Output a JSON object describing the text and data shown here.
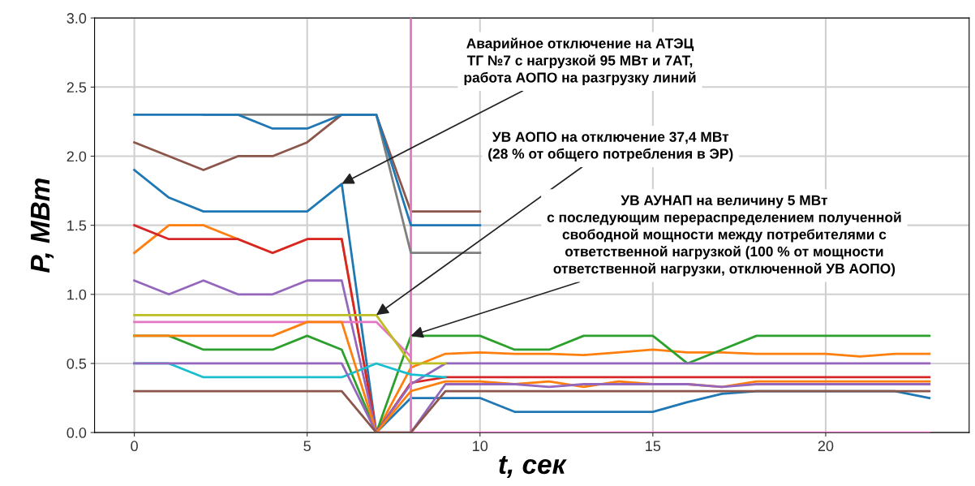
{
  "chart_data": {
    "type": "line",
    "xlabel": "t, сек",
    "ylabel": "P, МВт",
    "x": [
      0,
      1,
      2,
      3,
      4,
      5,
      6,
      7,
      8,
      9,
      10,
      11,
      12,
      13,
      14,
      15,
      16,
      17,
      18,
      19,
      20,
      21,
      22,
      23
    ],
    "xlim": [
      -1.15,
      24.15
    ],
    "ylim": [
      0,
      3.0
    ],
    "xticks": [
      0,
      5,
      10,
      15,
      20
    ],
    "yticks": [
      {
        "value": 0,
        "label": "0.0"
      },
      {
        "value": 0.5,
        "label": "0.5"
      },
      {
        "value": 1,
        "label": "1.0"
      },
      {
        "value": 1.5,
        "label": "1.5"
      },
      {
        "value": 2,
        "label": "2.0"
      },
      {
        "value": 2.5,
        "label": "2.5"
      },
      {
        "value": 3,
        "label": "3.0"
      }
    ],
    "grid": true,
    "legend": false,
    "marker": "none",
    "line_style": "solid",
    "series": [
      {
        "color": "#1f77b4",
        "values": [
          1.9,
          1.7,
          1.6,
          1.6,
          1.6,
          1.6,
          1.8,
          0,
          0.25,
          0.25,
          0.25,
          0.15,
          0.15,
          0.15,
          0.15,
          0.15,
          0.22,
          0.28,
          0.3,
          0.3,
          0.3,
          0.3,
          0.3,
          0.25
        ]
      },
      {
        "color": "#ff7f0e",
        "values": [
          1.3,
          1.5,
          1.5,
          1.4,
          1.3,
          1.4,
          1.4,
          0,
          0.47,
          0.57,
          0.58,
          0.57,
          0.57,
          0.56,
          0.58,
          0.6,
          0.58,
          0.58,
          0.57,
          0.57,
          0.57,
          0.55,
          0.57,
          0.57
        ]
      },
      {
        "color": "#2ca02c",
        "values": [
          0.7,
          0.7,
          0.6,
          0.6,
          0.6,
          0.7,
          0.6,
          0,
          0.7,
          0.7,
          0.7,
          0.6,
          0.6,
          0.7,
          0.7,
          0.7,
          0.5,
          0.6,
          0.7,
          0.7,
          0.7,
          0.7,
          0.7,
          0.7
        ]
      },
      {
        "color": "#d62728",
        "values": [
          1.5,
          1.4,
          1.4,
          1.4,
          1.3,
          1.4,
          1.4,
          0,
          0.36,
          0.4,
          0.4,
          0.4,
          0.4,
          0.4,
          0.4,
          0.4,
          0.4,
          0.4,
          0.4,
          0.4,
          0.4,
          0.4,
          0.4,
          0.4
        ]
      },
      {
        "color": "#9467bd",
        "values": [
          1.1,
          1.0,
          1.1,
          1.0,
          1.0,
          1.1,
          1.1,
          0,
          0.35,
          0.5,
          0.5,
          0.5,
          0.5,
          0.5,
          0.5,
          0.5,
          0.5,
          0.5,
          0.5,
          0.5,
          0.5,
          0.5,
          0.5,
          0.5
        ]
      },
      {
        "color": "#8c564b",
        "values": [
          2.1,
          2.0,
          1.9,
          2.0,
          2.0,
          2.1,
          2.3,
          2.3,
          1.6,
          1.6,
          1.6,
          null,
          null,
          null,
          null,
          null,
          null,
          null,
          null,
          null,
          null,
          null,
          null,
          null
        ]
      },
      {
        "color": "#e377c2",
        "x": [
          0,
          1,
          2,
          3,
          4,
          5,
          6,
          7,
          8,
          8,
          8,
          9,
          10,
          11,
          12,
          13,
          14,
          15,
          16,
          17,
          18,
          19,
          20,
          21,
          22,
          23
        ],
        "values": [
          0.8,
          0.8,
          0.8,
          0.8,
          0.8,
          0.8,
          0.8,
          0.8,
          0.55,
          3.0,
          0,
          0,
          0,
          0,
          0,
          0,
          0,
          0,
          0,
          0,
          0,
          0,
          0,
          0,
          0,
          0
        ]
      },
      {
        "color": "#7f7f7f",
        "values": [
          null,
          null,
          2.3,
          2.3,
          2.3,
          2.3,
          2.3,
          2.3,
          1.3,
          1.3,
          1.3,
          null,
          null,
          null,
          null,
          null,
          null,
          null,
          null,
          null,
          null,
          null,
          null,
          null
        ]
      },
      {
        "color": "#bcbd22",
        "values": [
          0.85,
          0.85,
          0.85,
          0.85,
          0.85,
          0.85,
          0.85,
          0.85,
          0.5,
          0.5,
          null,
          null,
          null,
          null,
          null,
          null,
          null,
          null,
          null,
          null,
          null,
          null,
          null,
          null
        ]
      },
      {
        "color": "#17becf",
        "values": [
          0.5,
          0.5,
          0.4,
          0.4,
          0.4,
          0.4,
          0.4,
          0.5,
          0.42,
          0.4,
          null,
          null,
          null,
          null,
          null,
          null,
          null,
          null,
          null,
          null,
          null,
          null,
          null,
          null
        ]
      },
      {
        "color": "#1f77b4",
        "values": [
          2.3,
          2.3,
          2.3,
          2.3,
          2.2,
          2.2,
          2.3,
          2.3,
          1.5,
          1.5,
          1.5,
          null,
          null,
          null,
          null,
          null,
          null,
          null,
          null,
          null,
          null,
          null,
          null,
          null
        ]
      },
      {
        "color": "#ff7f0e",
        "values": [
          0.7,
          0.7,
          0.7,
          0.7,
          0.7,
          0.8,
          0.8,
          0,
          0.3,
          0.37,
          0.37,
          0.35,
          0.37,
          0.33,
          0.37,
          0.35,
          0.35,
          0.33,
          0.37,
          0.37,
          0.37,
          0.37,
          0.37,
          0.37
        ]
      },
      {
        "color": "#9467bd",
        "values": [
          0.5,
          0.5,
          0.5,
          0.5,
          0.5,
          0.5,
          0.5,
          0,
          0,
          0.35,
          0.35,
          0.35,
          0.33,
          0.35,
          0.35,
          0.35,
          0.35,
          0.33,
          0.35,
          0.35,
          0.35,
          0.35,
          0.35,
          0.35
        ]
      },
      {
        "color": "#8c564b",
        "values": [
          0.3,
          0.3,
          0.3,
          0.3,
          0.3,
          0.3,
          0.3,
          0,
          0,
          0.3,
          0.3,
          0.3,
          0.3,
          0.3,
          0.3,
          0.3,
          0.3,
          0.3,
          0.3,
          0.3,
          0.3,
          0.3,
          0.3,
          0.3
        ]
      }
    ],
    "annotations": [
      {
        "text": "Аварийное отключение на АТЭЦ\nТГ №7 с нагрузкой 95 МВт и 7АТ,\nработа АОПО на разгрузку линий",
        "x": 6,
        "y": 1.8
      },
      {
        "text": "УВ АОПО на отключение 37,4 МВт\n(28 % от общего потребления в ЭР)",
        "x": 7,
        "y": 0.85
      },
      {
        "text": "УВ АУНАП на величину 5 МВт\nс последующим перераспределением полученной\nсвободной мощности между потребителями с\nответственной нагрузкой (100 % от мощности\nответственной нагрузки, отключенной УВ АОПО)",
        "x": 8,
        "y": 0.7
      }
    ]
  }
}
